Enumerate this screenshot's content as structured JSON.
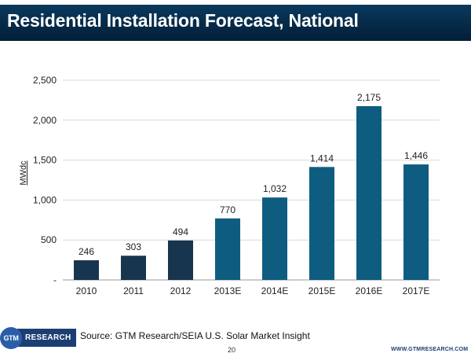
{
  "page": {
    "title": "Residential Installation Forecast, National",
    "source": "Source: GTM Research/SEIA U.S. Solar Market Insight",
    "page_number": "20",
    "footer_url": "WWW.GTMRESEARCH.COM",
    "logo": {
      "circle_text": "GTM",
      "word_text": "RESEARCH"
    }
  },
  "colors": {
    "title_bar": "#052a48",
    "actual_bar": "#17354e",
    "forecast_bar": "#0e5d80",
    "gridline": "#d9d9d9",
    "axis": "#9a9a9a"
  },
  "chart_data": {
    "type": "bar",
    "title": "Residential Installation Forecast, National",
    "xlabel": "",
    "ylabel": "MWdc",
    "categories": [
      "2010",
      "2011",
      "2012",
      "2013E",
      "2014E",
      "2015E",
      "2016E",
      "2017E"
    ],
    "values": [
      246,
      303,
      494,
      770,
      1032,
      1414,
      2175,
      1446
    ],
    "data_labels": [
      "246",
      "303",
      "494",
      "770",
      "1,032",
      "1,414",
      "2,175",
      "1,446"
    ],
    "series_type": [
      "actual",
      "actual",
      "actual",
      "forecast",
      "forecast",
      "forecast",
      "forecast",
      "forecast"
    ],
    "ylim": [
      0,
      2500
    ],
    "yticks": [
      0,
      500,
      1000,
      1500,
      2000,
      2500
    ],
    "ytick_labels": [
      "-",
      "500",
      "1,000",
      "1,500",
      "2,000",
      "2,500"
    ],
    "grid": true,
    "legend": "none"
  }
}
